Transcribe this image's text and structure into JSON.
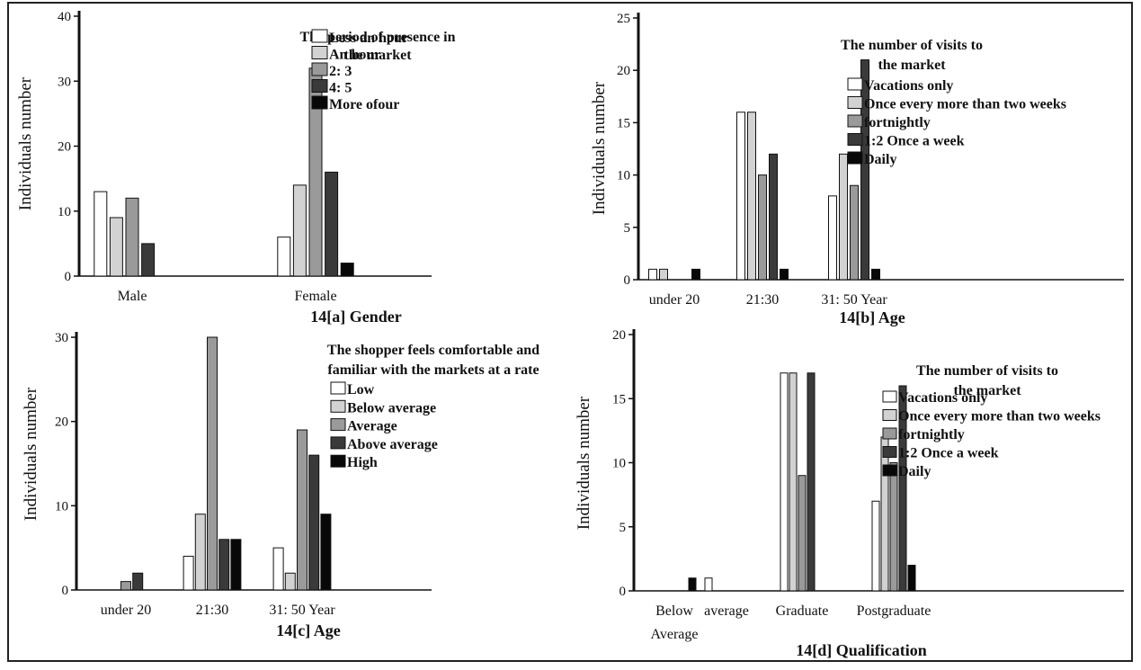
{
  "chart_data": [
    {
      "type": "bar",
      "caption": "14[a] Gender",
      "ylabel": "Individuals number",
      "xlabel": "",
      "ylim": [
        0,
        40
      ],
      "yticks": [
        0,
        10,
        20,
        30,
        40
      ],
      "categories": [
        "Male",
        "Female"
      ],
      "legend_title": [
        "The period of presence in",
        "the market"
      ],
      "legend_position": "top-right",
      "series": [
        {
          "name": "Less an hour",
          "values": [
            13,
            6
          ]
        },
        {
          "name": "An hour",
          "values": [
            9,
            14
          ]
        },
        {
          "name": "2: 3",
          "values": [
            12,
            32
          ]
        },
        {
          "name": "4: 5",
          "values": [
            5,
            16
          ]
        },
        {
          "name": "More ofour",
          "values": [
            0,
            2
          ]
        }
      ],
      "grid": false
    },
    {
      "type": "bar",
      "caption": "14[b] Age",
      "ylabel": "Individuals number",
      "xlabel": "",
      "ylim": [
        0,
        25
      ],
      "yticks": [
        0,
        5,
        10,
        15,
        20,
        25
      ],
      "categories": [
        "under 20",
        "21:30",
        "31: 50 Year"
      ],
      "legend_title": [
        "The number of visits to",
        "the market"
      ],
      "legend_position": "top-right",
      "series": [
        {
          "name": "Vacations only",
          "values": [
            1,
            16,
            8
          ]
        },
        {
          "name": "Once every more than two weeks",
          "values": [
            1,
            16,
            12
          ]
        },
        {
          "name": "fortnightly",
          "values": [
            0,
            10,
            9
          ]
        },
        {
          "name": "1:2 Once a week",
          "values": [
            0,
            12,
            21
          ]
        },
        {
          "name": "Daily",
          "values": [
            1,
            1,
            1
          ]
        }
      ],
      "grid": false
    },
    {
      "type": "bar",
      "caption": "14[c] Age",
      "ylabel": "Individuals number",
      "xlabel": "",
      "ylim": [
        0,
        30
      ],
      "yticks": [
        0,
        10,
        20,
        30
      ],
      "categories": [
        "under 20",
        "21:30",
        "31: 50 Year"
      ],
      "legend_title": [
        "The shopper feels comfortable and",
        "familiar with the markets at a rate"
      ],
      "legend_position": "top-right",
      "series": [
        {
          "name": "Low",
          "values": [
            0,
            4,
            5
          ]
        },
        {
          "name": "Below average",
          "values": [
            0,
            9,
            2
          ]
        },
        {
          "name": "Average",
          "values": [
            1,
            30,
            19
          ]
        },
        {
          "name": "Above average",
          "values": [
            2,
            6,
            16
          ]
        },
        {
          "name": "High",
          "values": [
            0,
            6,
            9
          ]
        }
      ],
      "grid": false
    },
    {
      "type": "bar",
      "caption": "14[d]  Qualification",
      "ylabel": "Individuals number",
      "xlabel": "",
      "ylim": [
        0,
        20
      ],
      "yticks": [
        0,
        5,
        10,
        15,
        20
      ],
      "categories": [
        [
          "Below",
          "Average"
        ],
        [
          "average"
        ],
        [
          "Graduate"
        ],
        [
          "Postgraduate"
        ]
      ],
      "legend_title": [
        "The number of visits to",
        "the market"
      ],
      "legend_position": "top-right",
      "series": [
        {
          "name": "Vacations only",
          "values": [
            0,
            1,
            17,
            7
          ]
        },
        {
          "name": "Once every more than two weeks",
          "values": [
            0,
            0,
            17,
            12
          ]
        },
        {
          "name": "fortnightly",
          "values": [
            0,
            0,
            9,
            10
          ]
        },
        {
          "name": "1:2 Once a week",
          "values": [
            0,
            0,
            17,
            16
          ]
        },
        {
          "name": "Daily",
          "values": [
            1,
            0,
            0,
            2
          ]
        }
      ],
      "grid": false
    }
  ],
  "colors": {
    "series_fills": [
      "#ffffff",
      "#d2d2d2",
      "#9a9a9a",
      "#3a3a3a",
      "#080808"
    ],
    "axis": "#111111"
  }
}
